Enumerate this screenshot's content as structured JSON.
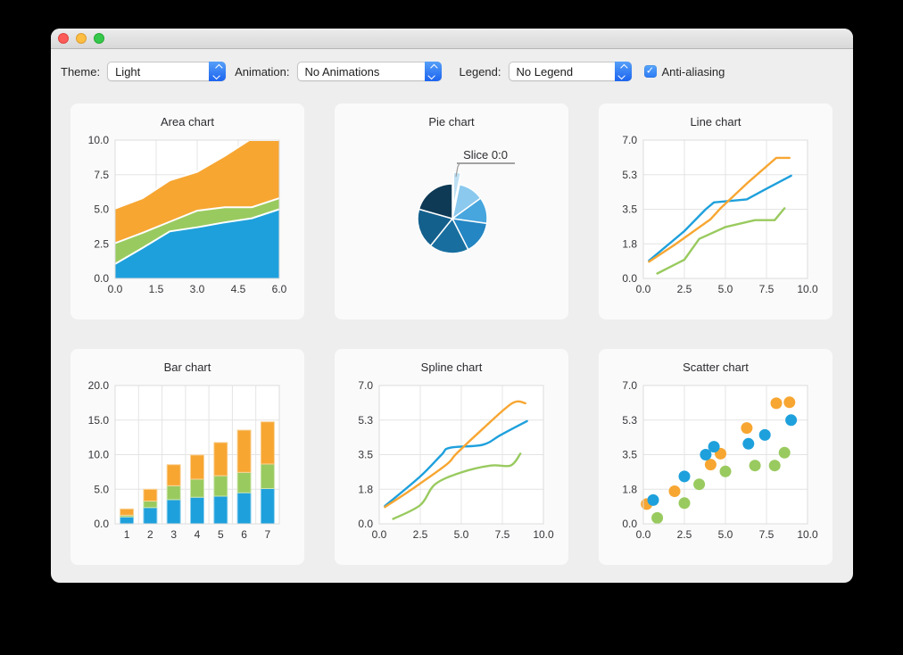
{
  "window": {
    "traffic_lights": {
      "close": "close",
      "minimize": "minimize",
      "zoom": "zoom"
    }
  },
  "toolbar": {
    "theme_label": "Theme:",
    "theme_value": "Light",
    "animation_label": "Animation:",
    "animation_value": "No Animations",
    "legend_label": "Legend:",
    "legend_value": "No Legend",
    "antialias_label": "Anti-aliasing",
    "antialias_checked": true
  },
  "colors": {
    "series_blue": "#1ea0dc",
    "series_green": "#99ca5f",
    "series_orange": "#f7a632",
    "selection_blue": "#2d7bf5",
    "grid_line": "#e4e4e4",
    "plot_background": "#ffffff",
    "card_background": "#fafafa",
    "window_background": "#eeeeee"
  },
  "chart_data": [
    {
      "type": "area",
      "title": "Area chart",
      "x_range": [
        0,
        6
      ],
      "y_range": [
        0,
        10
      ],
      "x_ticks": [
        0,
        1.5,
        3,
        4.5,
        6
      ],
      "x_tick_labels": [
        "0.0",
        "1.5",
        "3.0",
        "4.5",
        "6.0"
      ],
      "y_ticks": [
        0,
        2.5,
        5,
        7.5,
        10
      ],
      "y_tick_labels": [
        "0.0",
        "2.5",
        "5.0",
        "7.5",
        "10.0"
      ],
      "grid": true,
      "series": [
        {
          "name": "orange-area",
          "color": "#f7a632",
          "points": [
            [
              0,
              5.05
            ],
            [
              1,
              5.8
            ],
            [
              2,
              7.1
            ],
            [
              3,
              7.7
            ],
            [
              4,
              8.85
            ],
            [
              4.9,
              10
            ],
            [
              6,
              10
            ]
          ]
        },
        {
          "name": "green-area",
          "color": "#99ca5f",
          "points": [
            [
              0,
              2.55
            ],
            [
              1,
              3.3
            ],
            [
              2,
              4.1
            ],
            [
              3,
              4.9
            ],
            [
              4,
              5.15
            ],
            [
              5,
              5.15
            ],
            [
              6,
              5.8
            ]
          ]
        },
        {
          "name": "blue-area",
          "color": "#1ea0dc",
          "points": [
            [
              0,
              1.05
            ],
            [
              1,
              2.2
            ],
            [
              2,
              3.4
            ],
            [
              3,
              3.7
            ],
            [
              4,
              4.05
            ],
            [
              5,
              4.35
            ],
            [
              6,
              5.0
            ]
          ]
        }
      ]
    },
    {
      "type": "pie",
      "title": "Pie chart",
      "label": "Slice 0:0",
      "slices": [
        {
          "name": "slice-0",
          "pct": 3.3,
          "color": "#bfe0f4",
          "exploded": true
        },
        {
          "name": "slice-1",
          "pct": 11.7,
          "color": "#8bc9ee",
          "exploded": false
        },
        {
          "name": "slice-2",
          "pct": 12.2,
          "color": "#47a6de",
          "exploded": false
        },
        {
          "name": "slice-3",
          "pct": 15.3,
          "color": "#2486c3",
          "exploded": false
        },
        {
          "name": "slice-4",
          "pct": 18.3,
          "color": "#186f9f",
          "exploded": false
        },
        {
          "name": "slice-5",
          "pct": 18.6,
          "color": "#14608d",
          "exploded": false
        },
        {
          "name": "slice-6",
          "pct": 20.6,
          "color": "#0e3a55",
          "exploded": false
        }
      ]
    },
    {
      "type": "line",
      "title": "Line chart",
      "x_range": [
        0,
        10
      ],
      "y_range": [
        0,
        7
      ],
      "x_ticks": [
        0,
        2.5,
        5,
        7.5,
        10
      ],
      "x_tick_labels": [
        "0.0",
        "2.5",
        "5.0",
        "7.5",
        "10.0"
      ],
      "y_ticks": [
        0,
        1.75,
        3.5,
        5.25,
        7
      ],
      "y_tick_labels": [
        "0.0",
        "1.8",
        "3.5",
        "5.3",
        "7.0"
      ],
      "grid": true,
      "series": [
        {
          "name": "green-line",
          "color": "#99ca5f",
          "points": [
            [
              0.85,
              0.25
            ],
            [
              2.5,
              0.95
            ],
            [
              3.4,
              2.0
            ],
            [
              5.0,
              2.6
            ],
            [
              6.8,
              2.95
            ],
            [
              8.0,
              2.95
            ],
            [
              8.6,
              3.55
            ]
          ]
        },
        {
          "name": "blue-line",
          "color": "#1ea0dc",
          "points": [
            [
              0.35,
              0.9
            ],
            [
              2.5,
              2.4
            ],
            [
              3.8,
              3.5
            ],
            [
              4.3,
              3.85
            ],
            [
              6.3,
              4.0
            ],
            [
              7.4,
              4.5
            ],
            [
              9.0,
              5.2
            ]
          ]
        },
        {
          "name": "orange-line",
          "color": "#f7a632",
          "points": [
            [
              0.35,
              0.85
            ],
            [
              1.9,
              1.7
            ],
            [
              4.1,
              3.0
            ],
            [
              4.7,
              3.55
            ],
            [
              6.3,
              4.8
            ],
            [
              8.1,
              6.1
            ],
            [
              8.9,
              6.1
            ]
          ]
        }
      ]
    },
    {
      "type": "bar",
      "title": "Bar chart",
      "stacked": true,
      "categories": [
        "1",
        "2",
        "3",
        "4",
        "5",
        "6",
        "7"
      ],
      "y_range": [
        0,
        20
      ],
      "y_ticks": [
        0,
        5,
        10,
        15,
        20
      ],
      "y_tick_labels": [
        "0.0",
        "5.0",
        "10.0",
        "15.0",
        "20.0"
      ],
      "grid": true,
      "series": [
        {
          "name": "blue-bar-set",
          "color": "#1ea0dc",
          "values": [
            1.0,
            2.35,
            3.5,
            3.85,
            4.0,
            4.5,
            5.1
          ]
        },
        {
          "name": "green-bar-set",
          "color": "#99ca5f",
          "values": [
            0.25,
            0.95,
            2.0,
            2.6,
            2.95,
            2.95,
            3.55
          ]
        },
        {
          "name": "orange-bar-set",
          "color": "#f7a632",
          "values": [
            0.9,
            1.7,
            3.05,
            3.5,
            4.8,
            6.1,
            6.1
          ]
        }
      ]
    },
    {
      "type": "spline",
      "title": "Spline chart",
      "x_range": [
        0,
        10
      ],
      "y_range": [
        0,
        7
      ],
      "x_ticks": [
        0,
        2.5,
        5,
        7.5,
        10
      ],
      "x_tick_labels": [
        "0.0",
        "2.5",
        "5.0",
        "7.5",
        "10.0"
      ],
      "y_ticks": [
        0,
        1.75,
        3.5,
        5.25,
        7
      ],
      "y_tick_labels": [
        "0.0",
        "1.8",
        "3.5",
        "5.3",
        "7.0"
      ],
      "grid": true,
      "series": [
        {
          "name": "green-spline",
          "color": "#99ca5f",
          "points": [
            [
              0.85,
              0.25
            ],
            [
              2.5,
              0.95
            ],
            [
              3.4,
              2.0
            ],
            [
              5.0,
              2.6
            ],
            [
              6.8,
              2.95
            ],
            [
              8.0,
              2.95
            ],
            [
              8.6,
              3.55
            ]
          ]
        },
        {
          "name": "blue-spline",
          "color": "#1ea0dc",
          "points": [
            [
              0.35,
              0.9
            ],
            [
              2.5,
              2.4
            ],
            [
              3.8,
              3.5
            ],
            [
              4.3,
              3.85
            ],
            [
              6.3,
              4.0
            ],
            [
              7.4,
              4.5
            ],
            [
              9.0,
              5.2
            ]
          ]
        },
        {
          "name": "orange-spline",
          "color": "#f7a632",
          "points": [
            [
              0.35,
              0.85
            ],
            [
              1.9,
              1.7
            ],
            [
              4.1,
              3.0
            ],
            [
              4.7,
              3.55
            ],
            [
              6.3,
              4.8
            ],
            [
              8.1,
              6.1
            ],
            [
              8.9,
              6.1
            ]
          ]
        }
      ]
    },
    {
      "type": "scatter",
      "title": "Scatter chart",
      "x_range": [
        0,
        10
      ],
      "y_range": [
        0,
        7
      ],
      "x_ticks": [
        0,
        2.5,
        5,
        7.5,
        10
      ],
      "x_tick_labels": [
        "0.0",
        "2.5",
        "5.0",
        "7.5",
        "10.0"
      ],
      "y_ticks": [
        0,
        1.75,
        3.5,
        5.25,
        7
      ],
      "y_tick_labels": [
        "0.0",
        "1.8",
        "3.5",
        "5.3",
        "7.0"
      ],
      "grid": true,
      "marker_radius": 6.5,
      "series": [
        {
          "name": "green-scatter",
          "color": "#99ca5f",
          "points": [
            [
              0.85,
              0.3
            ],
            [
              2.5,
              1.05
            ],
            [
              3.4,
              2.0
            ],
            [
              5.0,
              2.65
            ],
            [
              6.8,
              2.95
            ],
            [
              8.0,
              2.95
            ],
            [
              8.6,
              3.6
            ]
          ]
        },
        {
          "name": "orange-scatter",
          "color": "#f7a632",
          "points": [
            [
              0.2,
              1.0
            ],
            [
              1.9,
              1.65
            ],
            [
              4.1,
              3.0
            ],
            [
              4.7,
              3.55
            ],
            [
              6.3,
              4.85
            ],
            [
              8.1,
              6.1
            ],
            [
              8.9,
              6.15
            ]
          ]
        },
        {
          "name": "blue-scatter",
          "color": "#1ea0dc",
          "points": [
            [
              0.6,
              1.2
            ],
            [
              2.5,
              2.4
            ],
            [
              3.8,
              3.5
            ],
            [
              4.3,
              3.9
            ],
            [
              6.4,
              4.05
            ],
            [
              7.4,
              4.5
            ],
            [
              9.0,
              5.25
            ]
          ]
        }
      ]
    }
  ]
}
